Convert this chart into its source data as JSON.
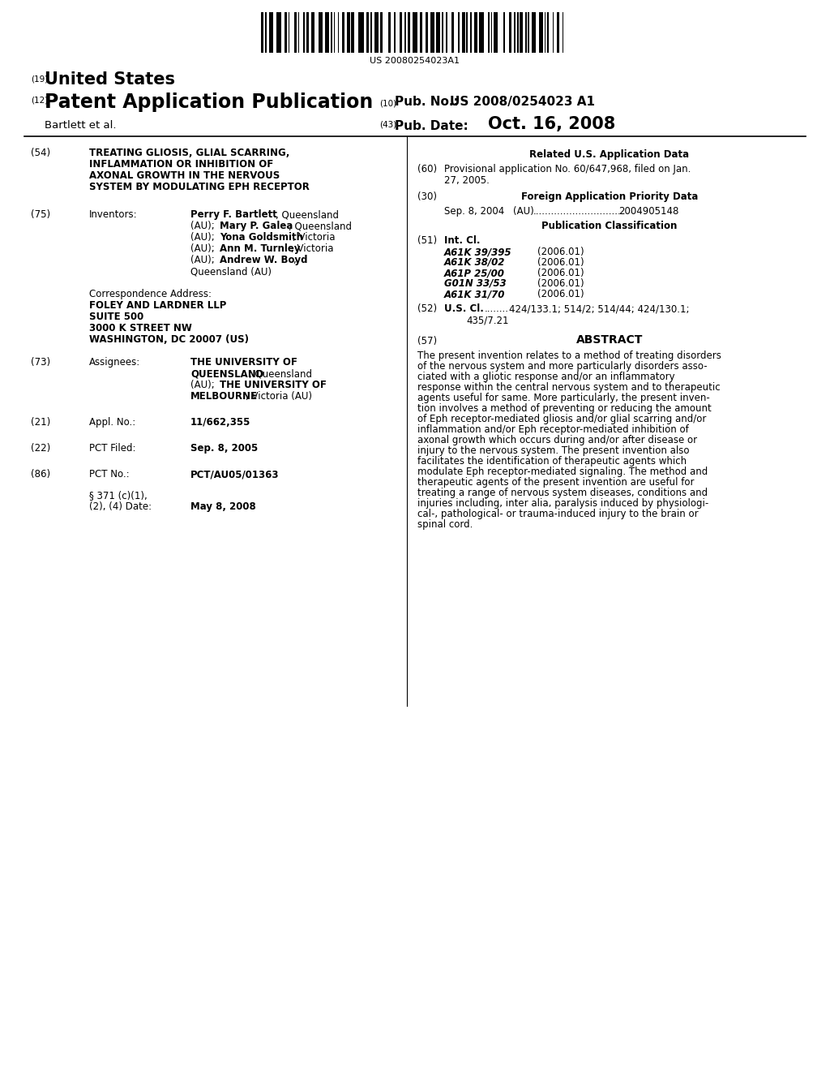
{
  "background_color": "#ffffff",
  "barcode_text": "US 20080254023A1",
  "title_line1": "TREATING GLIOSIS, GLIAL SCARRING,",
  "title_line2": "INFLAMMATION OR INHIBITION OF",
  "title_line3": "AXONAL GROWTH IN THE NERVOUS",
  "title_line4": "SYSTEM BY MODULATING EPH RECEPTOR",
  "int_cl_entries": [
    [
      "A61K 39/395",
      "(2006.01)"
    ],
    [
      "A61K 38/02",
      "(2006.01)"
    ],
    [
      "A61P 25/00",
      "(2006.01)"
    ],
    [
      "G01N 33/53",
      "(2006.01)"
    ],
    [
      "A61K 31/70",
      "(2006.01)"
    ]
  ],
  "abstract_lines": [
    "The present invention relates to a method of treating disorders",
    "of the nervous system and more particularly disorders asso-",
    "ciated with a gliotic response and/or an inflammatory",
    "response within the central nervous system and to therapeutic",
    "agents useful for same. More particularly, the present inven-",
    "tion involves a method of preventing or reducing the amount",
    "of Eph receptor-mediated gliosis and/or glial scarring and/or",
    "inflammation and/or Eph receptor-mediated inhibition of",
    "axonal growth which occurs during and/or after disease or",
    "injury to the nervous system. The present invention also",
    "facilitates the identification of therapeutic agents which",
    "modulate Eph receptor-mediated signaling. The method and",
    "therapeutic agents of the present invention are useful for",
    "treating a range of nervous system diseases, conditions and",
    "injuries including, inter alia, paralysis induced by physiologi-",
    "cal-, pathological- or trauma-induced injury to the brain or",
    "spinal cord."
  ]
}
